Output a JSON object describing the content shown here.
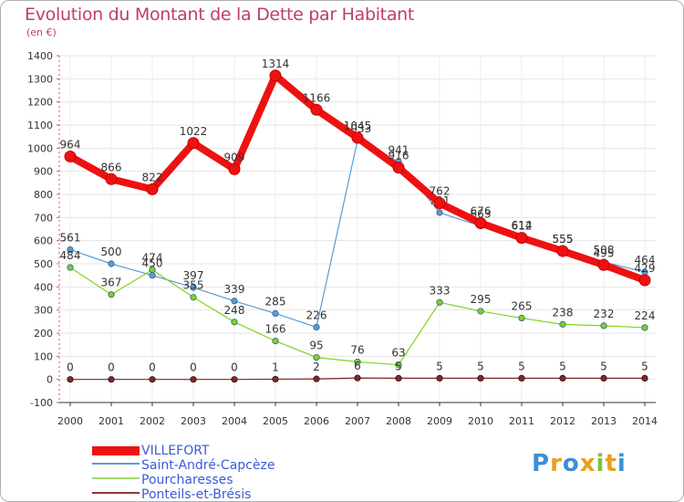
{
  "chart_data": {
    "type": "line",
    "title": "Evolution du Montant de la Dette par Habitant",
    "unit_label": "(en €)",
    "x": [
      "2000",
      "2001",
      "2002",
      "2003",
      "2004",
      "2005",
      "2006",
      "2007",
      "2008",
      "2009",
      "2010",
      "2011",
      "2012",
      "2013",
      "2014"
    ],
    "y_ticks": [
      -100,
      0,
      100,
      200,
      300,
      400,
      500,
      600,
      700,
      800,
      900,
      1000,
      1100,
      1200,
      1300,
      1400
    ],
    "ylim": [
      -100,
      1400
    ],
    "grid": true,
    "legend_position": "bottom-left",
    "series": [
      {
        "name": "Saint-André-Capcèze",
        "color": "#5b9bd5",
        "values": [
          561,
          500,
          450,
          397,
          339,
          285,
          226,
          1033,
          941,
          721,
          663,
          614,
          555,
          508,
          464
        ]
      },
      {
        "name": "Pourcharesses",
        "color": "#7ed321",
        "values": [
          484,
          367,
          474,
          355,
          248,
          166,
          95,
          76,
          63,
          333,
          295,
          265,
          238,
          232,
          224
        ]
      },
      {
        "name": "Ponteils-et-Brésis",
        "color": "#7a2a2a",
        "values": [
          0,
          0,
          0,
          0,
          0,
          1,
          2,
          6,
          5,
          5,
          5,
          5,
          5,
          5,
          5
        ]
      },
      {
        "name": "VILLEFORT",
        "color": "#ee1111",
        "values": [
          964,
          866,
          822,
          1022,
          909,
          1314,
          1166,
          1045,
          916,
          762,
          676,
          612,
          555,
          495,
          429
        ]
      }
    ],
    "legend": [
      {
        "name": "VILLEFORT",
        "color": "#ee1111"
      },
      {
        "name": "Saint-André-Capcèze",
        "color": "#5b9bd5"
      },
      {
        "name": "Pourcharesses",
        "color": "#a3d96a"
      },
      {
        "name": "Ponteils-et-Brésis",
        "color": "#8b3a3a"
      }
    ]
  },
  "logo": {
    "letters": [
      "P",
      "r",
      "o",
      "x",
      "i",
      "t",
      "i"
    ],
    "colors": [
      "#3a8fd8",
      "#e8a020",
      "#3a8fd8",
      "#e8a020",
      "#7cc242",
      "#e8a020",
      "#3a8fd8"
    ]
  }
}
